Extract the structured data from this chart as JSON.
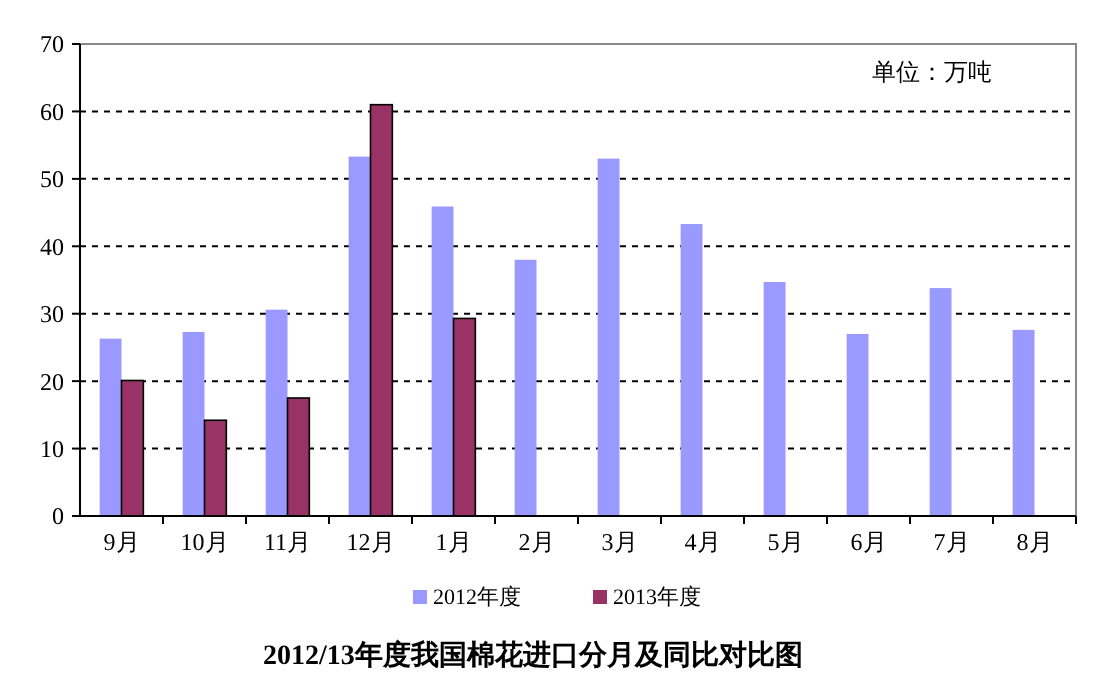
{
  "chart_data": {
    "type": "bar",
    "title": "2012/13年度我国棉花进口分月及同比对比图",
    "annotations": [
      "单位：万吨"
    ],
    "categories": [
      "9月",
      "10月",
      "11月",
      "12月",
      "1月",
      "2月",
      "3月",
      "4月",
      "5月",
      "6月",
      "7月",
      "8月"
    ],
    "series": [
      {
        "name": "2012年度",
        "color": "#9999ff",
        "values": [
          26.3,
          27.3,
          30.6,
          53.3,
          45.9,
          38.0,
          53.0,
          43.3,
          34.7,
          27.0,
          33.8,
          27.6
        ]
      },
      {
        "name": "2013年度",
        "color": "#993366",
        "values": [
          20.1,
          14.2,
          17.5,
          61.0,
          29.3,
          null,
          null,
          null,
          null,
          null,
          null,
          null
        ]
      }
    ],
    "ylim": [
      0,
      70
    ],
    "yticks": [
      0,
      10,
      20,
      30,
      40,
      50,
      60,
      70
    ],
    "grid": "y",
    "legend": "bottom"
  }
}
